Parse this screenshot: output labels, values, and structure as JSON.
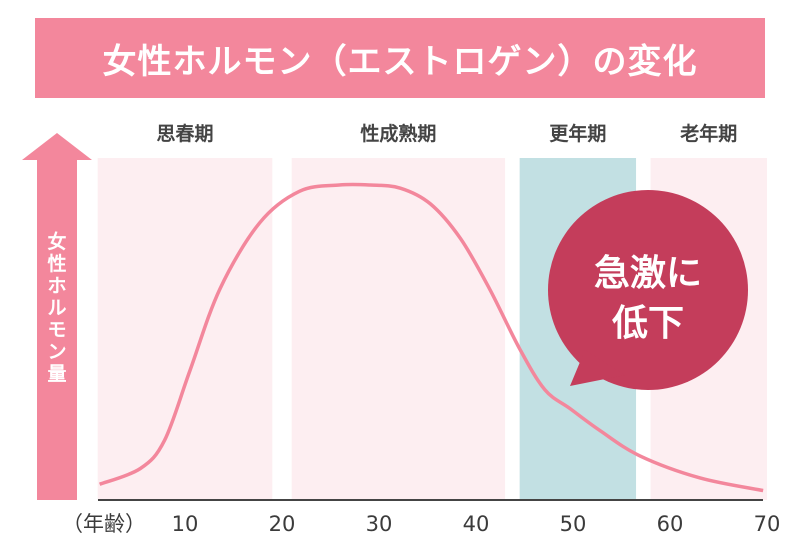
{
  "title": "女性ホルモン（エストロゲン）の変化",
  "chart_data": {
    "type": "line",
    "title": "女性ホルモン（エストロゲン）の変化",
    "ylabel": "女性ホルモン量",
    "xlabel": "（年齢）",
    "x_ticks": [
      10,
      20,
      30,
      40,
      50,
      60,
      70
    ],
    "xlim": [
      1,
      70
    ],
    "ylim": [
      0,
      100
    ],
    "grid": false,
    "phases": [
      {
        "label": "思春期",
        "range": [
          1,
          19
        ],
        "color": "#fdeef1"
      },
      {
        "label": "性成熟期",
        "range": [
          21,
          43
        ],
        "color": "#fdeef1"
      },
      {
        "label": "更年期",
        "range": [
          44.5,
          56.5
        ],
        "color": "#c2e0e3"
      },
      {
        "label": "老年期",
        "range": [
          58,
          70
        ],
        "color": "#fdeef1"
      }
    ],
    "series": [
      {
        "color": "#f3879c",
        "x": [
          1.2,
          5.4,
          7.9,
          10.5,
          13.6,
          17.7,
          21.8,
          25.9,
          29.1,
          32.2,
          35.3,
          38.4,
          41.4,
          44.5,
          47.1,
          49.7,
          52.8,
          56.9,
          63.1,
          69.6
        ],
        "y": [
          5,
          10,
          19,
          41,
          67,
          88,
          98,
          100,
          100,
          99,
          94,
          83,
          67,
          48,
          35,
          29,
          22,
          14,
          7,
          3
        ]
      }
    ],
    "annotation": {
      "lines": [
        "急激に",
        "低下"
      ],
      "color": "#c43d5b"
    }
  },
  "colors": {
    "accent": "#f3879c",
    "axis": "#444444"
  }
}
